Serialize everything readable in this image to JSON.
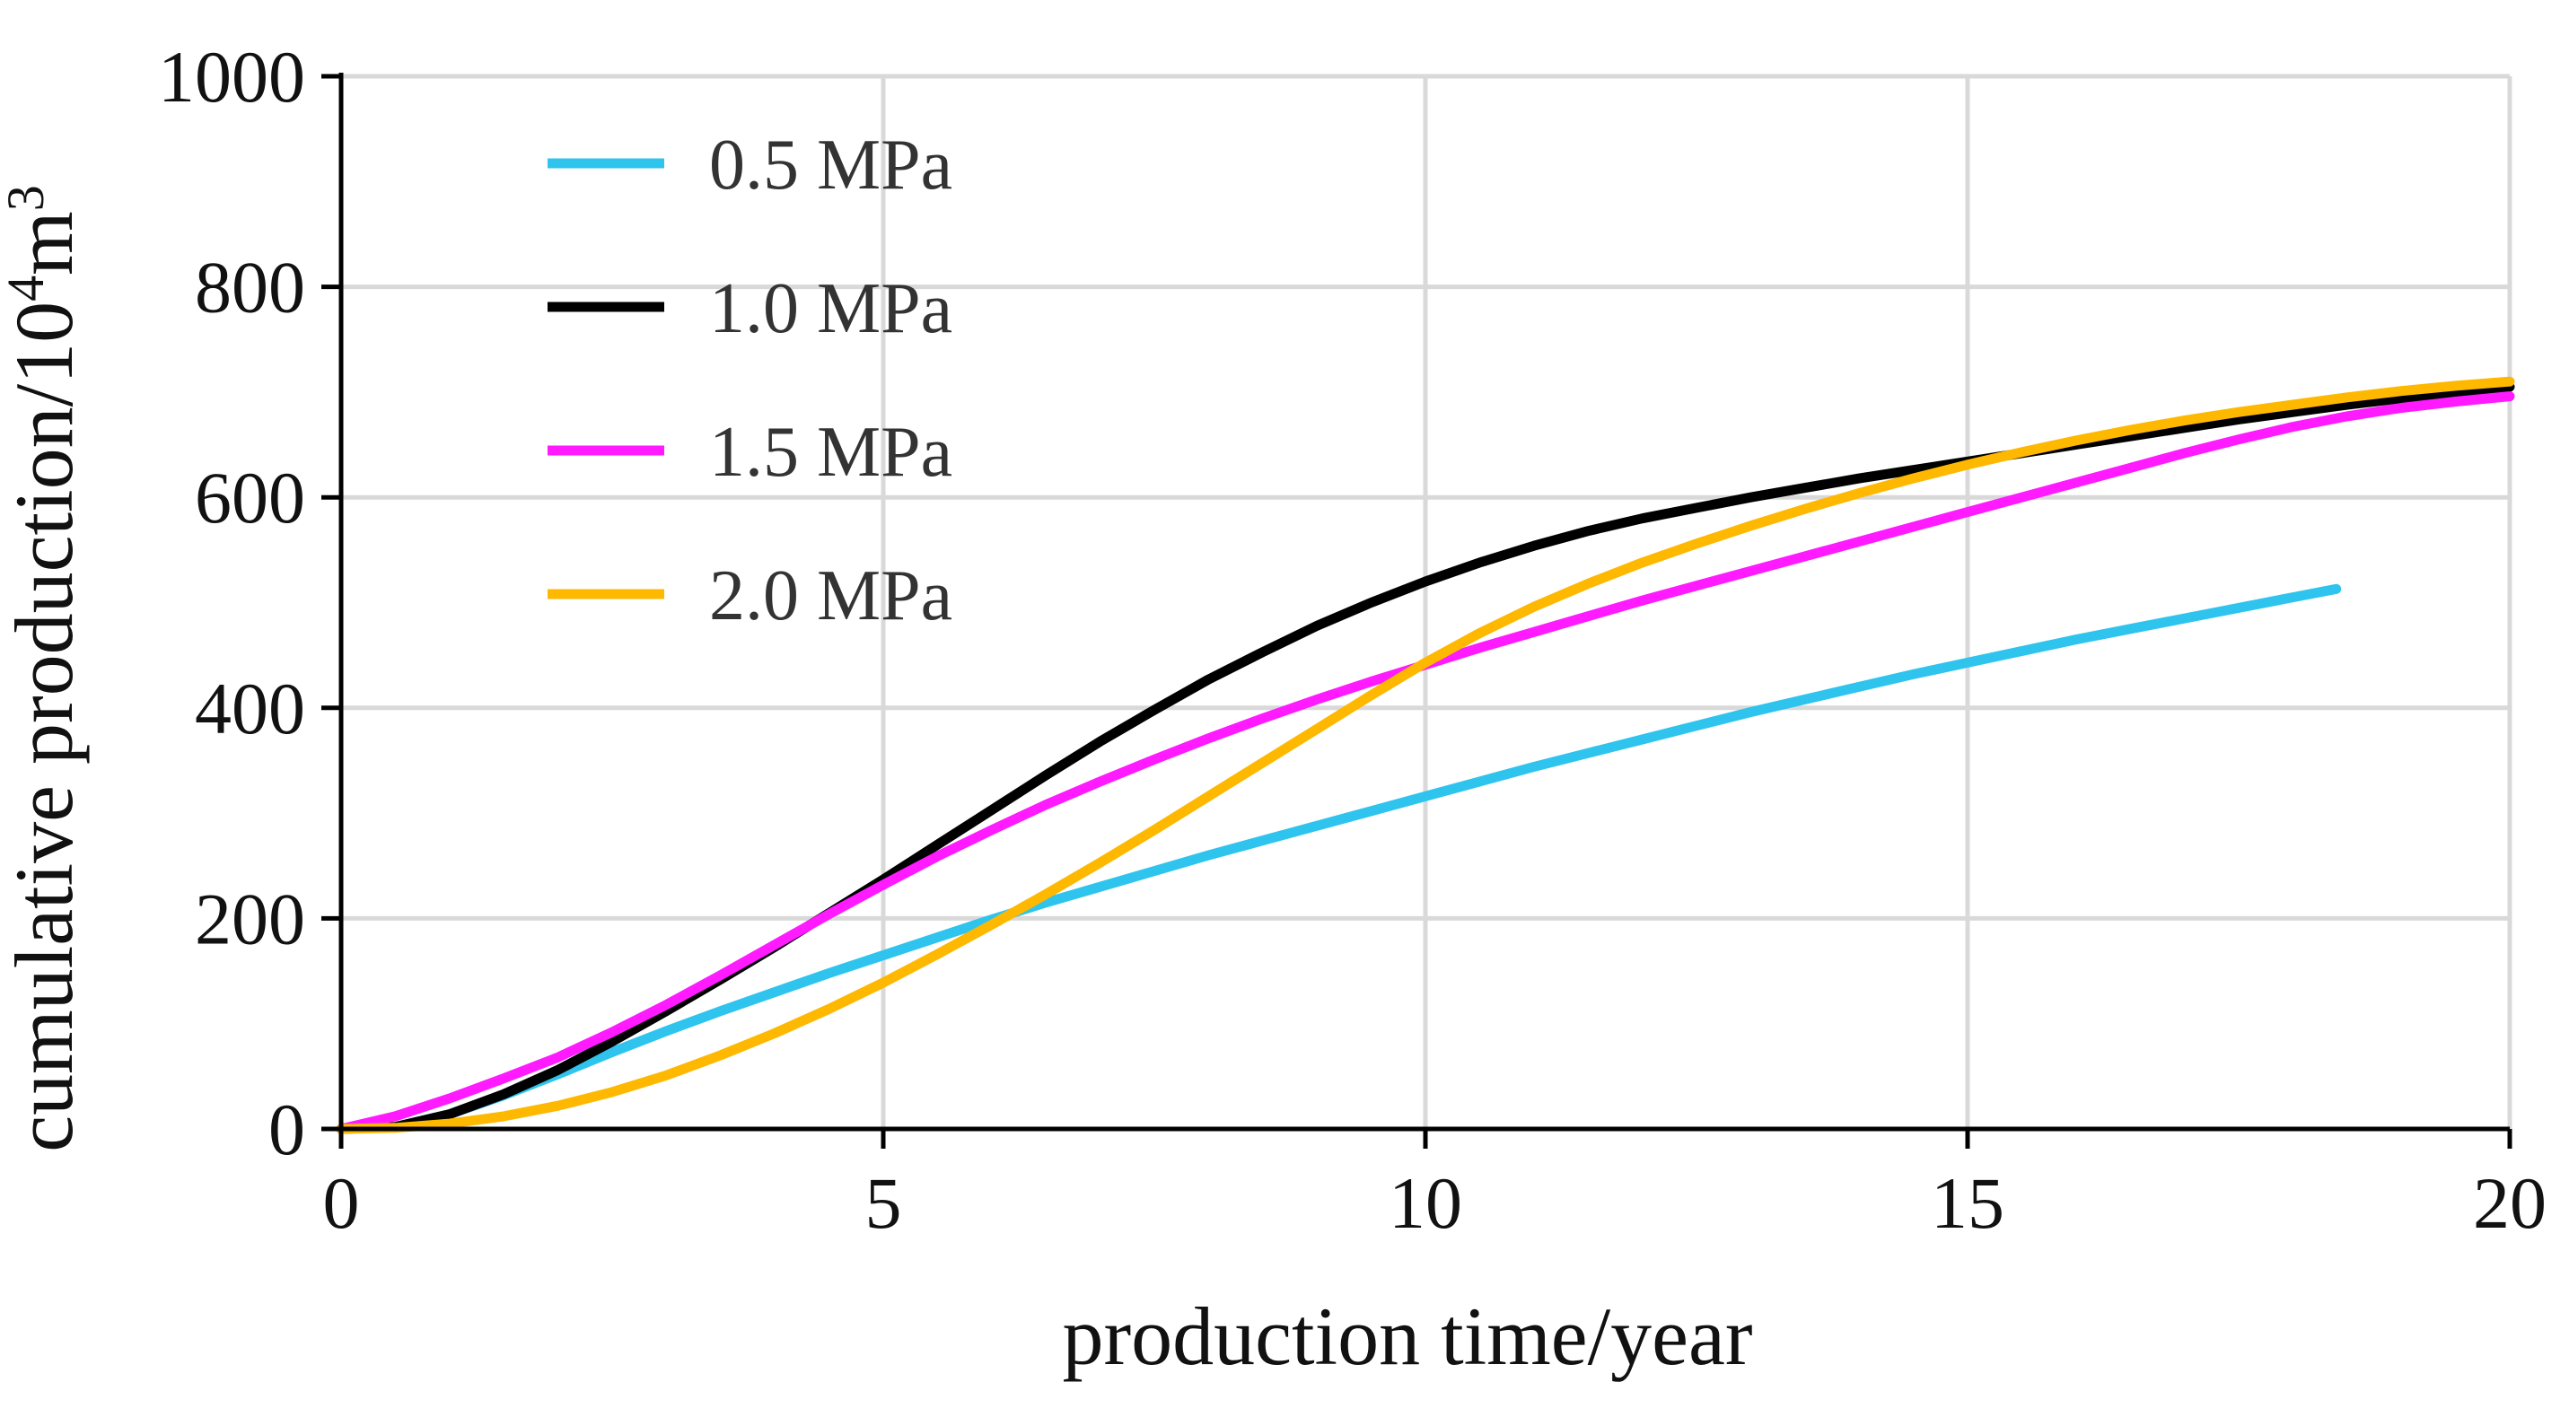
{
  "chart_data": {
    "type": "line",
    "title": "",
    "xlabel": "production time/year",
    "ylabel": {
      "prefix": "cumulative production/10",
      "exp": "4",
      "unit": "m",
      "unit_exp": "3"
    },
    "xlim": [
      0,
      20
    ],
    "ylim": [
      0,
      1000
    ],
    "xticks": [
      0,
      5,
      10,
      15,
      20
    ],
    "yticks": [
      0,
      200,
      400,
      600,
      800,
      1000
    ],
    "x_tick_labels": [
      "0",
      "5",
      "10",
      "15",
      "20"
    ],
    "y_tick_labels": [
      "0",
      "200",
      "400",
      "600",
      "800",
      "1000"
    ],
    "grid": true,
    "legend_position": "top-left",
    "series": [
      {
        "name": "0.5 MPa",
        "color": "#2EC4EE",
        "points": [
          [
            0,
            0
          ],
          [
            0.5,
            2
          ],
          [
            1,
            14
          ],
          [
            1.5,
            32
          ],
          [
            2,
            52
          ],
          [
            2.5,
            73
          ],
          [
            3,
            93
          ],
          [
            3.5,
            112
          ],
          [
            4,
            130
          ],
          [
            4.5,
            148
          ],
          [
            5,
            165
          ],
          [
            5.5,
            182
          ],
          [
            6,
            199
          ],
          [
            6.5,
            215
          ],
          [
            7,
            230
          ],
          [
            7.5,
            245
          ],
          [
            8,
            260
          ],
          [
            8.5,
            274
          ],
          [
            9,
            288
          ],
          [
            9.5,
            302
          ],
          [
            10,
            316
          ],
          [
            10.5,
            330
          ],
          [
            11,
            344
          ],
          [
            11.5,
            357
          ],
          [
            12,
            370
          ],
          [
            12.5,
            383
          ],
          [
            13,
            396
          ],
          [
            13.5,
            408
          ],
          [
            14,
            420
          ],
          [
            14.5,
            432
          ],
          [
            15,
            443
          ],
          [
            15.5,
            454
          ],
          [
            16,
            465
          ],
          [
            16.5,
            475
          ],
          [
            17,
            485
          ],
          [
            17.5,
            495
          ],
          [
            18,
            505
          ],
          [
            18.4,
            513
          ]
        ]
      },
      {
        "name": "1.0 MPa",
        "color": "#000000",
        "points": [
          [
            0,
            0
          ],
          [
            0.5,
            2
          ],
          [
            1,
            14
          ],
          [
            1.5,
            33
          ],
          [
            2,
            56
          ],
          [
            2.5,
            83
          ],
          [
            3,
            112
          ],
          [
            3.5,
            142
          ],
          [
            4,
            173
          ],
          [
            4.5,
            205
          ],
          [
            5,
            237
          ],
          [
            5.5,
            270
          ],
          [
            6,
            303
          ],
          [
            6.5,
            336
          ],
          [
            7,
            368
          ],
          [
            7.5,
            398
          ],
          [
            8,
            427
          ],
          [
            8.5,
            453
          ],
          [
            9,
            478
          ],
          [
            9.5,
            500
          ],
          [
            10,
            520
          ],
          [
            10.5,
            538
          ],
          [
            11,
            554
          ],
          [
            11.5,
            568
          ],
          [
            12,
            580
          ],
          [
            12.5,
            590
          ],
          [
            13,
            600
          ],
          [
            13.5,
            609
          ],
          [
            14,
            618
          ],
          [
            14.5,
            626
          ],
          [
            15,
            634
          ],
          [
            15.5,
            642
          ],
          [
            16,
            650
          ],
          [
            16.5,
            658
          ],
          [
            17,
            666
          ],
          [
            17.5,
            674
          ],
          [
            18,
            681
          ],
          [
            18.5,
            688
          ],
          [
            19,
            694
          ],
          [
            19.5,
            700
          ],
          [
            20,
            705
          ]
        ]
      },
      {
        "name": "1.5 MPa",
        "color": "#FF1AFF",
        "points": [
          [
            0,
            0
          ],
          [
            0.5,
            12
          ],
          [
            1,
            29
          ],
          [
            1.5,
            48
          ],
          [
            2,
            68
          ],
          [
            2.5,
            92
          ],
          [
            3,
            118
          ],
          [
            3.5,
            146
          ],
          [
            4,
            175
          ],
          [
            4.5,
            204
          ],
          [
            5,
            232
          ],
          [
            5.5,
            259
          ],
          [
            6,
            284
          ],
          [
            6.5,
            308
          ],
          [
            7,
            330
          ],
          [
            7.5,
            351
          ],
          [
            8,
            371
          ],
          [
            8.5,
            390
          ],
          [
            9,
            408
          ],
          [
            9.5,
            425
          ],
          [
            10,
            441
          ],
          [
            10.5,
            457
          ],
          [
            11,
            472
          ],
          [
            11.5,
            487
          ],
          [
            12,
            502
          ],
          [
            12.5,
            516
          ],
          [
            13,
            530
          ],
          [
            13.5,
            544
          ],
          [
            14,
            558
          ],
          [
            14.5,
            572
          ],
          [
            15,
            586
          ],
          [
            15.5,
            600
          ],
          [
            16,
            614
          ],
          [
            16.5,
            628
          ],
          [
            17,
            642
          ],
          [
            17.5,
            655
          ],
          [
            18,
            667
          ],
          [
            18.5,
            677
          ],
          [
            19,
            685
          ],
          [
            19.5,
            691
          ],
          [
            20,
            696
          ]
        ]
      },
      {
        "name": "2.0 MPa",
        "color": "#FFB800",
        "points": [
          [
            0,
            0
          ],
          [
            0.5,
            1
          ],
          [
            1,
            5
          ],
          [
            1.5,
            12
          ],
          [
            2,
            22
          ],
          [
            2.5,
            35
          ],
          [
            3,
            51
          ],
          [
            3.5,
            70
          ],
          [
            4,
            91
          ],
          [
            4.5,
            114
          ],
          [
            5,
            139
          ],
          [
            5.5,
            166
          ],
          [
            6,
            194
          ],
          [
            6.5,
            223
          ],
          [
            7,
            253
          ],
          [
            7.5,
            284
          ],
          [
            8,
            316
          ],
          [
            8.5,
            348
          ],
          [
            9,
            380
          ],
          [
            9.5,
            412
          ],
          [
            10,
            443
          ],
          [
            10.5,
            471
          ],
          [
            11,
            496
          ],
          [
            11.5,
            518
          ],
          [
            12,
            538
          ],
          [
            12.5,
            556
          ],
          [
            13,
            573
          ],
          [
            13.5,
            589
          ],
          [
            14,
            604
          ],
          [
            14.5,
            618
          ],
          [
            15,
            631
          ],
          [
            15.5,
            643
          ],
          [
            16,
            654
          ],
          [
            16.5,
            664
          ],
          [
            17,
            673
          ],
          [
            17.5,
            681
          ],
          [
            18,
            688
          ],
          [
            18.5,
            695
          ],
          [
            19,
            701
          ],
          [
            19.5,
            706
          ],
          [
            20,
            710
          ]
        ]
      }
    ]
  }
}
